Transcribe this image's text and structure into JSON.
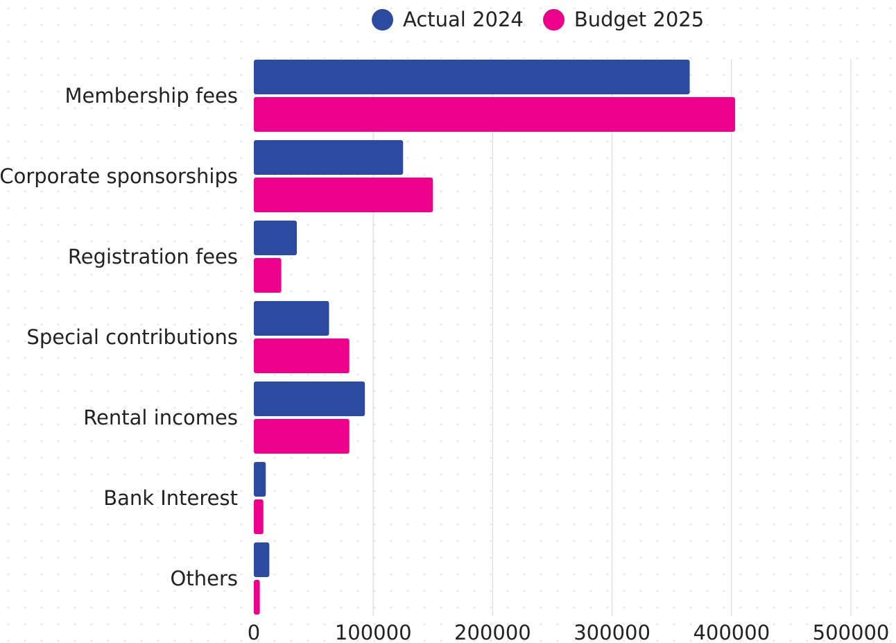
{
  "chart_data": {
    "type": "bar",
    "orientation": "horizontal",
    "categories": [
      "Membership fees",
      "Corporate sponsorships",
      "Registration fees",
      "Special contributions",
      "Rental incomes",
      "Bank Interest",
      "Others"
    ],
    "series": [
      {
        "name": "Actual 2024",
        "color": "#2c4ba0",
        "values": [
          365000,
          125000,
          36000,
          63000,
          93000,
          10000,
          13000
        ]
      },
      {
        "name": "Budget 2025",
        "color": "#ec008c",
        "values": [
          403000,
          150000,
          23000,
          80000,
          80000,
          8000,
          5000
        ]
      }
    ],
    "xlim": [
      0,
      500000
    ],
    "xticks": [
      "0",
      "100000",
      "200000",
      "300000",
      "400000",
      "500000"
    ],
    "grid": true,
    "legend_position": "top"
  }
}
